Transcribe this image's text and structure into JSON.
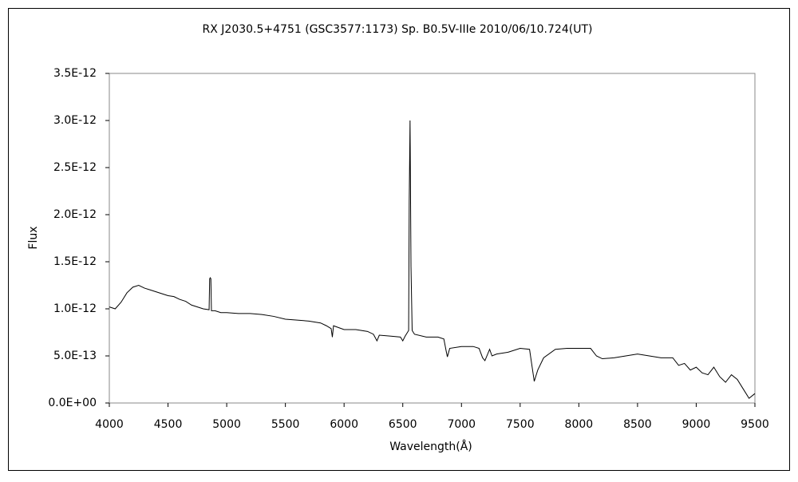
{
  "chart_data": {
    "type": "line",
    "title": "RX J2030.5+4751 (GSC3577:1173)      Sp. B0.5V-IIIe    2010/06/10.724(UT)",
    "xlabel": "Wavelength(Å)",
    "ylabel": "Flux",
    "color": "#000000",
    "x": [
      4000,
      4050,
      4100,
      4150,
      4200,
      4250,
      4300,
      4350,
      4400,
      4450,
      4500,
      4550,
      4600,
      4650,
      4700,
      4750,
      4800,
      4850,
      4855,
      4860,
      4865,
      4870,
      4900,
      4950,
      5000,
      5100,
      5200,
      5300,
      5400,
      5500,
      5600,
      5700,
      5800,
      5850,
      5890,
      5900,
      5910,
      6000,
      6100,
      6200,
      6250,
      6280,
      6300,
      6400,
      6480,
      6500,
      6520,
      6550,
      6555,
      6562,
      6570,
      6580,
      6600,
      6700,
      6800,
      6850,
      6870,
      6880,
      6900,
      7000,
      7100,
      7150,
      7180,
      7200,
      7240,
      7260,
      7300,
      7400,
      7500,
      7580,
      7600,
      7620,
      7650,
      7700,
      7800,
      7900,
      8000,
      8100,
      8150,
      8200,
      8300,
      8400,
      8500,
      8600,
      8700,
      8800,
      8850,
      8900,
      8950,
      9000,
      9050,
      9100,
      9150,
      9200,
      9250,
      9300,
      9350,
      9400,
      9450,
      9500
    ],
    "values": [
      1.02e-12,
      1e-12,
      1.07e-12,
      1.17e-12,
      1.23e-12,
      1.25e-12,
      1.22e-12,
      1.2e-12,
      1.18e-12,
      1.16e-12,
      1.14e-12,
      1.13e-12,
      1.1e-12,
      1.08e-12,
      1.04e-12,
      1.02e-12,
      1e-12,
      9.9e-13,
      1.32e-12,
      1.33e-12,
      1.32e-12,
      9.8e-13,
      9.8e-13,
      9.6e-13,
      9.6e-13,
      9.5e-13,
      9.5e-13,
      9.4e-13,
      9.2e-13,
      8.9e-13,
      8.8e-13,
      8.7e-13,
      8.5e-13,
      8.2e-13,
      7.9e-13,
      7e-13,
      8.2e-13,
      7.8e-13,
      7.8e-13,
      7.6e-13,
      7.3e-13,
      6.6e-13,
      7.2e-13,
      7.1e-13,
      7e-13,
      6.6e-13,
      7.1e-13,
      7.7e-13,
      2.15e-12,
      3e-12,
      1.45e-12,
      7.7e-13,
      7.3e-13,
      7e-13,
      7e-13,
      6.8e-13,
      5.5e-13,
      4.9e-13,
      5.8e-13,
      6e-13,
      6e-13,
      5.8e-13,
      4.8e-13,
      4.5e-13,
      5.7e-13,
      5e-13,
      5.2e-13,
      5.4e-13,
      5.8e-13,
      5.7e-13,
      4e-13,
      2.3e-13,
      3.5e-13,
      4.8e-13,
      5.7e-13,
      5.8e-13,
      5.8e-13,
      5.8e-13,
      5e-13,
      4.7e-13,
      4.8e-13,
      5e-13,
      5.2e-13,
      5e-13,
      4.8e-13,
      4.8e-13,
      4e-13,
      4.2e-13,
      3.5e-13,
      3.8e-13,
      3.2e-13,
      3e-13,
      3.8e-13,
      2.8e-13,
      2.2e-13,
      3e-13,
      2.5e-13,
      1.5e-13,
      5e-14,
      1e-13
    ],
    "xlim": [
      4000,
      9500
    ],
    "xticks": [
      4000,
      4500,
      5000,
      5500,
      6000,
      6500,
      7000,
      7500,
      8000,
      8500,
      9000,
      9500
    ],
    "ylim": [
      0,
      3.5e-12
    ],
    "yticks": [
      {
        "value": 0,
        "label": "0.0E+00"
      },
      {
        "value": 5e-13,
        "label": "5.0E-13"
      },
      {
        "value": 1e-12,
        "label": "1.0E-12"
      },
      {
        "value": 1.5e-12,
        "label": "1.5E-12"
      },
      {
        "value": 2e-12,
        "label": "2.0E-12"
      },
      {
        "value": 2.5e-12,
        "label": "2.5E-12"
      },
      {
        "value": 3e-12,
        "label": "3.0E-12"
      },
      {
        "value": 3.5e-12,
        "label": "3.5E-12"
      }
    ]
  }
}
